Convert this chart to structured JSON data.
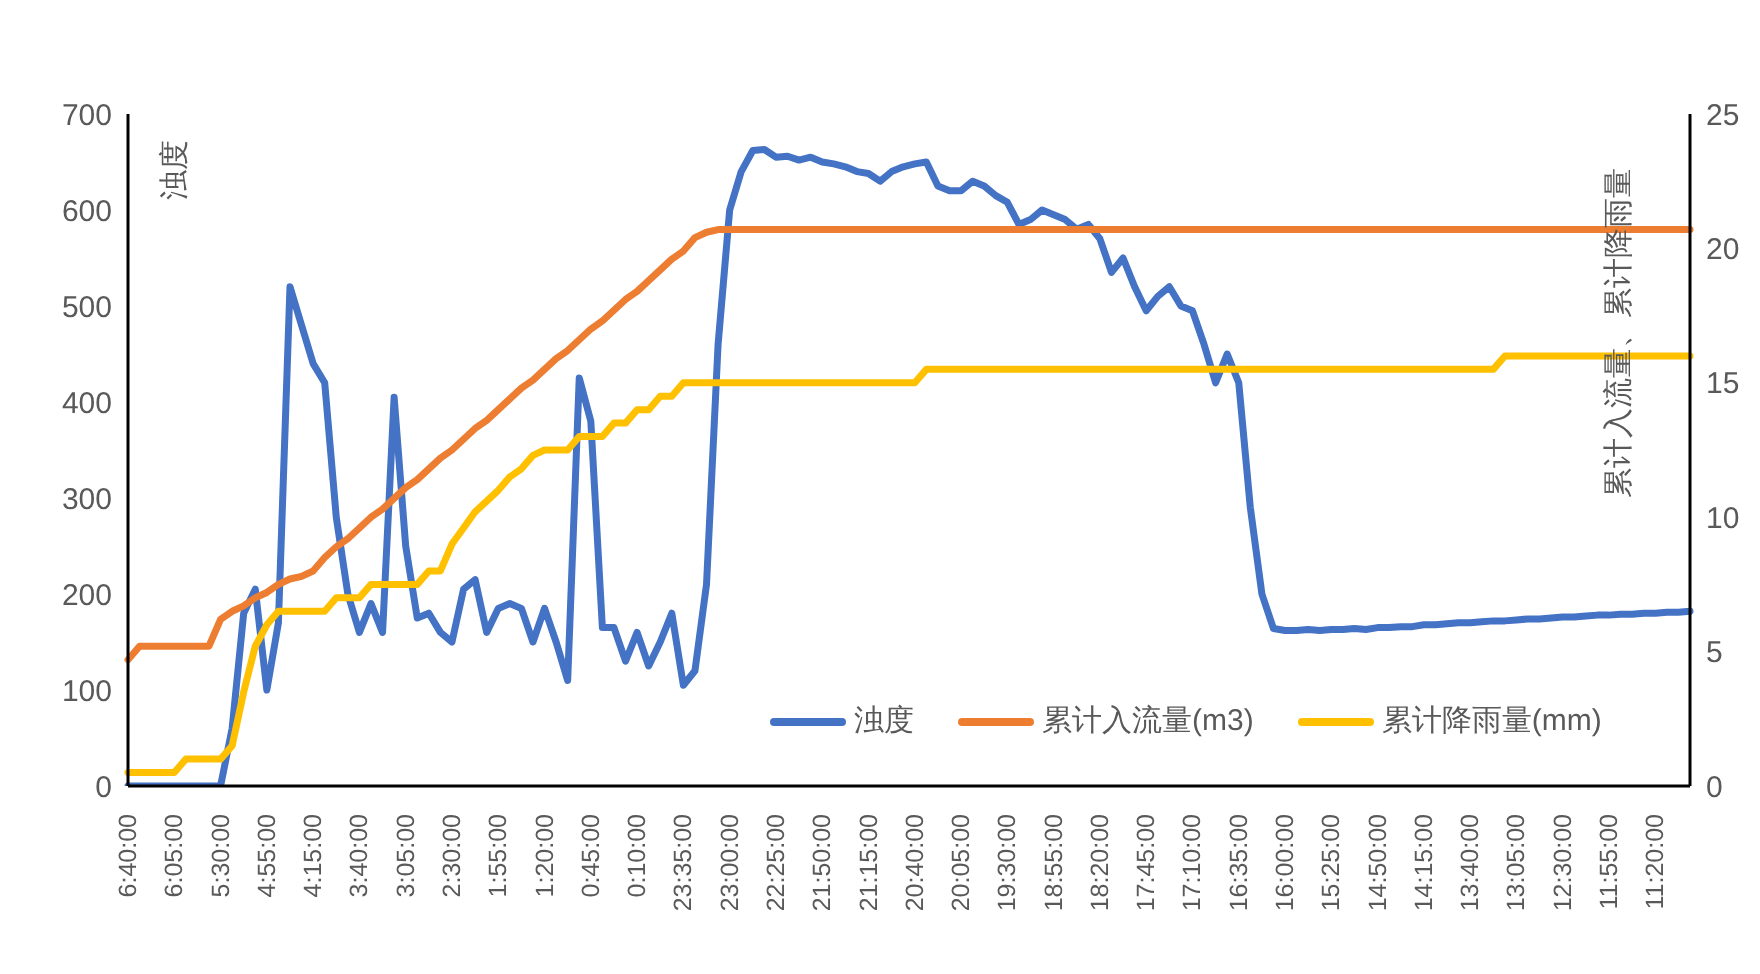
{
  "chart_data": {
    "type": "line",
    "ylabel": "浊度",
    "y2label": "累计入流量、累计降雨量",
    "categories": [
      "6:40:00",
      null,
      null,
      null,
      "6:05:00",
      null,
      null,
      null,
      "5:30:00",
      null,
      null,
      null,
      "4:55:00",
      null,
      null,
      null,
      "4:15:00",
      null,
      null,
      null,
      "3:40:00",
      null,
      null,
      null,
      "3:05:00",
      null,
      null,
      null,
      "2:30:00",
      null,
      null,
      null,
      "1:55:00",
      null,
      null,
      null,
      "1:20:00",
      null,
      null,
      null,
      "0:45:00",
      null,
      null,
      null,
      "0:10:00",
      null,
      null,
      null,
      "23:35:00",
      null,
      null,
      null,
      "23:00:00",
      null,
      null,
      null,
      "22:25:00",
      null,
      null,
      null,
      "21:50:00",
      null,
      null,
      null,
      "21:15:00",
      null,
      null,
      null,
      "20:40:00",
      null,
      null,
      null,
      "20:05:00",
      null,
      null,
      null,
      "19:30:00",
      null,
      null,
      null,
      "18:55:00",
      null,
      null,
      null,
      "18:20:00",
      null,
      null,
      null,
      "17:45:00",
      null,
      null,
      null,
      "17:10:00",
      null,
      null,
      null,
      "16:35:00",
      null,
      null,
      null,
      "16:00:00",
      null,
      null,
      null,
      "15:25:00",
      null,
      null,
      null,
      "14:50:00",
      null,
      null,
      null,
      "14:15:00",
      null,
      null,
      null,
      "13:40:00",
      null,
      null,
      null,
      "13:05:00",
      null,
      null,
      null,
      "12:30:00",
      null,
      null,
      null,
      "11:55:00",
      null,
      null,
      null,
      "11:20:00",
      null,
      null,
      null
    ],
    "series": [
      {
        "name": "浊度",
        "color": "#4472c4",
        "values": [
          0,
          0,
          0,
          0,
          0,
          0,
          0,
          0,
          0,
          60,
          180,
          205,
          100,
          170,
          520,
          480,
          440,
          420,
          280,
          200,
          160,
          190,
          160,
          405,
          250,
          175,
          180,
          160,
          150,
          205,
          215,
          160,
          185,
          190,
          185,
          150,
          185,
          150,
          110,
          425,
          380,
          165,
          165,
          130,
          160,
          125,
          150,
          180,
          105,
          120,
          210,
          460,
          600,
          640,
          662,
          663,
          655,
          656,
          652,
          655,
          650,
          648,
          645,
          640,
          638,
          630,
          640,
          645,
          648,
          650,
          625,
          620,
          620,
          630,
          625,
          615,
          608,
          585,
          590,
          600,
          595,
          590,
          580,
          585,
          570,
          535,
          550,
          520,
          495,
          510,
          520,
          500,
          495,
          460,
          420,
          450,
          420,
          290,
          200,
          164,
          162,
          162,
          163,
          162,
          163,
          163,
          164,
          163,
          165,
          165,
          166,
          166,
          168,
          168,
          169,
          170,
          170,
          171,
          172,
          172,
          173,
          174,
          174,
          175,
          176,
          176,
          177,
          178,
          178,
          179,
          179,
          180,
          180,
          181,
          181,
          182
        ]
      },
      {
        "name": "累计入流量(m3)",
        "color": "#ed7d31",
        "axis": "y2",
        "values": [
          4.7,
          5.2,
          5.2,
          5.2,
          5.2,
          5.2,
          5.2,
          5.2,
          6.2,
          6.5,
          6.7,
          7.0,
          7.2,
          7.5,
          7.7,
          7.8,
          8.0,
          8.5,
          8.9,
          9.2,
          9.6,
          10.0,
          10.3,
          10.7,
          11.1,
          11.4,
          11.8,
          12.2,
          12.5,
          12.9,
          13.3,
          13.6,
          14.0,
          14.4,
          14.8,
          15.1,
          15.5,
          15.9,
          16.2,
          16.6,
          17.0,
          17.3,
          17.7,
          18.1,
          18.4,
          18.8,
          19.2,
          19.6,
          19.9,
          20.4,
          20.6,
          20.7,
          20.7,
          20.7,
          20.7,
          20.7,
          20.7,
          20.7,
          20.7,
          20.7,
          20.7,
          20.7,
          20.7,
          20.7,
          20.7,
          20.7,
          20.7,
          20.7,
          20.7,
          20.7,
          20.7,
          20.7,
          20.7,
          20.7,
          20.7,
          20.7,
          20.7,
          20.7,
          20.7,
          20.7,
          20.7,
          20.7,
          20.7,
          20.7,
          20.7,
          20.7,
          20.7,
          20.7,
          20.7,
          20.7,
          20.7,
          20.7,
          20.7,
          20.7,
          20.7,
          20.7,
          20.7,
          20.7,
          20.7,
          20.7,
          20.7,
          20.7,
          20.7,
          20.7,
          20.7,
          20.7,
          20.7,
          20.7,
          20.7,
          20.7,
          20.7,
          20.7,
          20.7,
          20.7,
          20.7,
          20.7,
          20.7,
          20.7,
          20.7,
          20.7,
          20.7,
          20.7,
          20.7,
          20.7,
          20.7,
          20.7,
          20.7,
          20.7,
          20.7,
          20.7,
          20.7,
          20.7,
          20.7,
          20.7,
          20.7,
          20.7
        ]
      },
      {
        "name": "累计降雨量(mm)",
        "color": "#ffc000",
        "axis": "y2",
        "values": [
          0.5,
          0.5,
          0.5,
          0.5,
          0.5,
          1.0,
          1.0,
          1.0,
          1.0,
          1.5,
          3.5,
          5.2,
          6.0,
          6.5,
          6.5,
          6.5,
          6.5,
          6.5,
          7.0,
          7.0,
          7.0,
          7.5,
          7.5,
          7.5,
          7.5,
          7.5,
          8.0,
          8.0,
          9.0,
          9.6,
          10.2,
          10.6,
          11.0,
          11.5,
          11.8,
          12.3,
          12.5,
          12.5,
          12.5,
          13.0,
          13.0,
          13.0,
          13.5,
          13.5,
          14.0,
          14.0,
          14.5,
          14.5,
          15.0,
          15.0,
          15.0,
          15.0,
          15.0,
          15.0,
          15.0,
          15.0,
          15.0,
          15.0,
          15.0,
          15.0,
          15.0,
          15.0,
          15.0,
          15.0,
          15.0,
          15.0,
          15.0,
          15.0,
          15.0,
          15.5,
          15.5,
          15.5,
          15.5,
          15.5,
          15.5,
          15.5,
          15.5,
          15.5,
          15.5,
          15.5,
          15.5,
          15.5,
          15.5,
          15.5,
          15.5,
          15.5,
          15.5,
          15.5,
          15.5,
          15.5,
          15.5,
          15.5,
          15.5,
          15.5,
          15.5,
          15.5,
          15.5,
          15.5,
          15.5,
          15.5,
          15.5,
          15.5,
          15.5,
          15.5,
          15.5,
          15.5,
          15.5,
          15.5,
          15.5,
          15.5,
          15.5,
          15.5,
          15.5,
          15.5,
          15.5,
          15.5,
          15.5,
          15.5,
          15.5,
          16.0,
          16.0,
          16.0,
          16.0,
          16.0,
          16.0,
          16.0,
          16.0,
          16.0,
          16.0,
          16.0,
          16.0,
          16.0,
          16.0,
          16.0,
          16.0,
          16.0
        ]
      }
    ],
    "ylim": [
      0,
      700
    ],
    "yticks": [
      0,
      100,
      200,
      300,
      400,
      500,
      600,
      700
    ],
    "y2lim": [
      0,
      25
    ],
    "y2ticks": [
      0,
      5,
      10,
      15,
      20,
      25
    ],
    "grid": false,
    "legend": "bottom right",
    "marker": "none",
    "line_style": "solid"
  }
}
